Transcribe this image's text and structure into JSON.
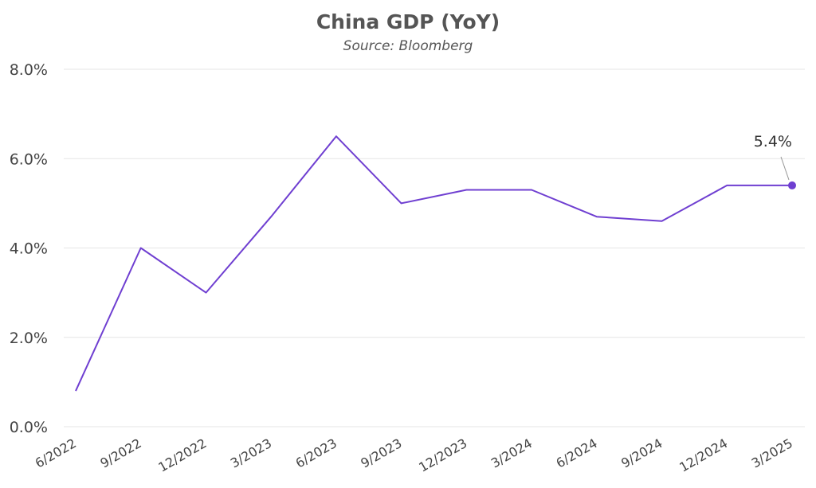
{
  "chart_data": {
    "type": "line",
    "title": "China GDP (YoY)",
    "subtitle": "Source: Bloomberg",
    "xlabel": "",
    "ylabel": "",
    "ylim": [
      0,
      8
    ],
    "y_ticks": [
      "0.0%",
      "2.0%",
      "4.0%",
      "6.0%",
      "8.0%"
    ],
    "y_tick_values": [
      0,
      2,
      4,
      6,
      8
    ],
    "x_tick_labels": [
      "6/2022",
      "9/2022",
      "12/2022",
      "3/2023",
      "6/2023",
      "9/2023",
      "12/2023",
      "3/2024",
      "6/2024",
      "9/2024",
      "12/2024",
      "3/2025"
    ],
    "grid": true,
    "series": [
      {
        "color": "#6f3fd1",
        "values": [
          0.8,
          4.0,
          3.0,
          4.7,
          6.5,
          5.0,
          5.3,
          5.3,
          4.7,
          4.6,
          5.4,
          5.4
        ]
      }
    ],
    "annotation": {
      "label": "5.4%",
      "index": 11
    }
  }
}
